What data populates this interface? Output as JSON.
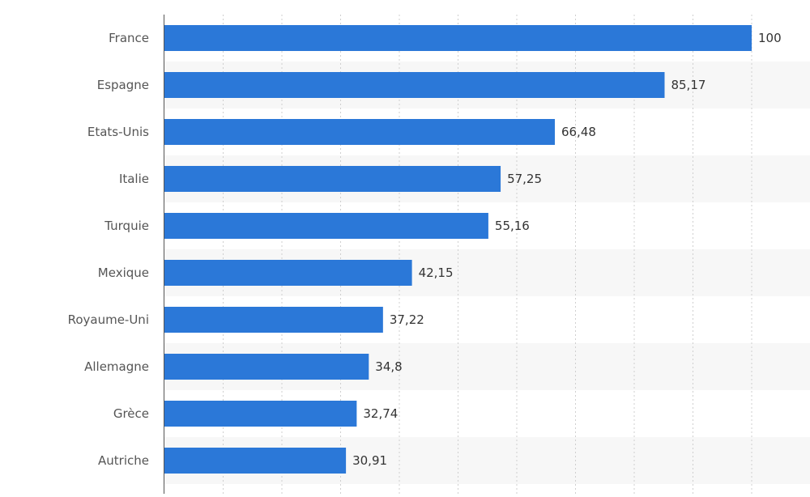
{
  "chart_data": {
    "type": "bar",
    "orientation": "horizontal",
    "categories": [
      "France",
      "Espagne",
      "Etats-Unis",
      "Italie",
      "Turquie",
      "Mexique",
      "Royaume-Uni",
      "Allemagne",
      "Grèce",
      "Autriche"
    ],
    "values": [
      100,
      85.17,
      66.48,
      57.25,
      55.16,
      42.15,
      37.22,
      34.8,
      32.74,
      30.91
    ],
    "value_labels": [
      "100",
      "85,17",
      "66,48",
      "57,25",
      "55,16",
      "42,15",
      "37,22",
      "34,8",
      "32,74",
      "30,91"
    ],
    "xlim": [
      0,
      110
    ],
    "grid": true,
    "bar_color": "#2b78d8",
    "band_color": "#f7f7f7"
  }
}
